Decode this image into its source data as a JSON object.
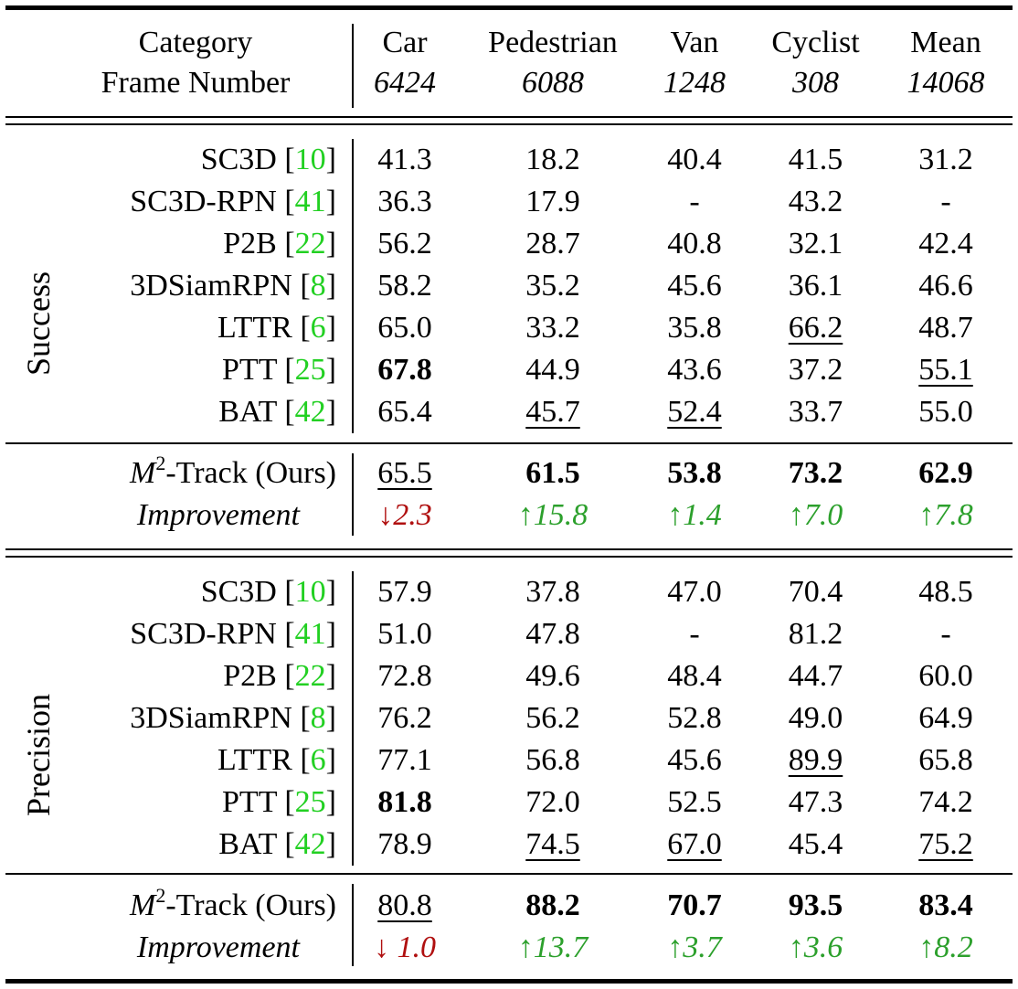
{
  "header": {
    "row1": [
      "Category",
      "Car",
      "Pedestrian",
      "Van",
      "Cyclist",
      "Mean"
    ],
    "row2": [
      "Frame Number",
      "6424",
      "6088",
      "1248",
      "308",
      "14068"
    ]
  },
  "sections": [
    {
      "label": "Success",
      "rows": [
        {
          "name": "SC3D [",
          "ref": "10",
          "close": "]",
          "values": [
            "41.3",
            "18.2",
            "40.4",
            "41.5",
            "31.2"
          ],
          "bold": [],
          "underline": []
        },
        {
          "name": "SC3D-RPN [",
          "ref": "41",
          "close": "]",
          "values": [
            "36.3",
            "17.9",
            "-",
            "43.2",
            "-"
          ],
          "bold": [],
          "underline": []
        },
        {
          "name": "P2B [",
          "ref": "22",
          "close": "]",
          "values": [
            "56.2",
            "28.7",
            "40.8",
            "32.1",
            "42.4"
          ],
          "bold": [],
          "underline": []
        },
        {
          "name": "3DSiamRPN [",
          "ref": "8",
          "close": "]",
          "values": [
            "58.2",
            "35.2",
            "45.6",
            "36.1",
            "46.6"
          ],
          "bold": [],
          "underline": []
        },
        {
          "name": "LTTR [",
          "ref": "6",
          "close": "]",
          "values": [
            "65.0",
            "33.2",
            "35.8",
            "66.2",
            "48.7"
          ],
          "bold": [],
          "underline": [
            3
          ]
        },
        {
          "name": "PTT [",
          "ref": "25",
          "close": "]",
          "values": [
            "67.8",
            "44.9",
            "43.6",
            "37.2",
            "55.1"
          ],
          "bold": [
            0
          ],
          "underline": [
            4
          ]
        },
        {
          "name": "BAT [",
          "ref": "42",
          "close": "]",
          "values": [
            "65.4",
            "45.7",
            "52.4",
            "33.7",
            "55.0"
          ],
          "bold": [],
          "underline": [
            1,
            2
          ]
        }
      ],
      "ours": {
        "prefix": "M",
        "sup": "2",
        "suffix": "-Track (Ours)",
        "values": [
          "65.5",
          "61.5",
          "53.8",
          "73.2",
          "62.9"
        ],
        "bold": [
          1,
          2,
          3,
          4
        ],
        "underline": [
          0
        ]
      },
      "improvement": {
        "label": "Improvement",
        "values": [
          "↓2.3",
          "↑15.8",
          "↑1.4",
          "↑7.0",
          "↑7.8"
        ],
        "direction": [
          "down",
          "up",
          "up",
          "up",
          "up"
        ]
      }
    },
    {
      "label": "Precision",
      "rows": [
        {
          "name": "SC3D [",
          "ref": "10",
          "close": "]",
          "values": [
            "57.9",
            "37.8",
            "47.0",
            "70.4",
            "48.5"
          ],
          "bold": [],
          "underline": []
        },
        {
          "name": "SC3D-RPN [",
          "ref": "41",
          "close": "]",
          "values": [
            "51.0",
            "47.8",
            "-",
            "81.2",
            "-"
          ],
          "bold": [],
          "underline": []
        },
        {
          "name": "P2B [",
          "ref": "22",
          "close": "]",
          "values": [
            "72.8",
            "49.6",
            "48.4",
            "44.7",
            "60.0"
          ],
          "bold": [],
          "underline": []
        },
        {
          "name": "3DSiamRPN [",
          "ref": "8",
          "close": "]",
          "values": [
            "76.2",
            "56.2",
            "52.8",
            "49.0",
            "64.9"
          ],
          "bold": [],
          "underline": []
        },
        {
          "name": "LTTR [",
          "ref": "6",
          "close": "]",
          "values": [
            "77.1",
            "56.8",
            "45.6",
            "89.9",
            "65.8"
          ],
          "bold": [],
          "underline": [
            3
          ]
        },
        {
          "name": "PTT [",
          "ref": "25",
          "close": "]",
          "values": [
            "81.8",
            "72.0",
            "52.5",
            "47.3",
            "74.2"
          ],
          "bold": [
            0
          ],
          "underline": []
        },
        {
          "name": "BAT [",
          "ref": "42",
          "close": "]",
          "values": [
            "78.9",
            "74.5",
            "67.0",
            "45.4",
            "75.2"
          ],
          "bold": [],
          "underline": [
            1,
            2,
            4
          ]
        }
      ],
      "ours": {
        "prefix": "M",
        "sup": "2",
        "suffix": "-Track (Ours)",
        "values": [
          "80.8",
          "88.2",
          "70.7",
          "93.5",
          "83.4"
        ],
        "bold": [
          1,
          2,
          3,
          4
        ],
        "underline": [
          0
        ]
      },
      "improvement": {
        "label": "Improvement",
        "values": [
          "↓ 1.0",
          "↑13.7",
          "↑3.7",
          "↑3.6",
          "↑8.2"
        ],
        "direction": [
          "down",
          "up",
          "up",
          "up",
          "up"
        ]
      }
    }
  ]
}
